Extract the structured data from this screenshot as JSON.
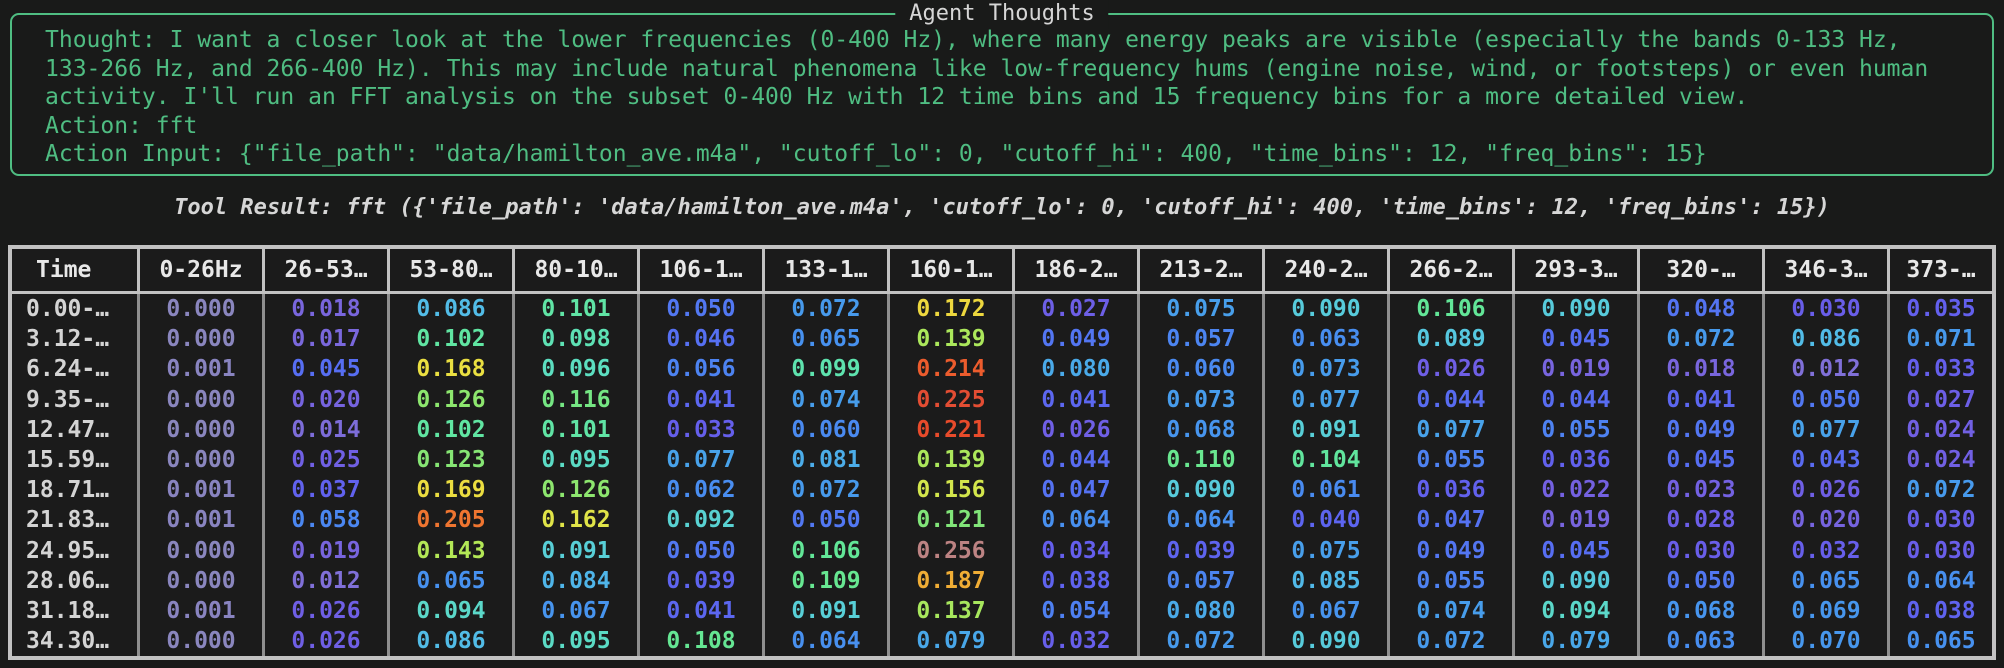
{
  "colors": {
    "bg": "#191a19",
    "green": "#4fbd82",
    "fg": "#d8d8d8",
    "frame": "#c2c2c2",
    "cellbg": "#1b1b1b",
    "gridline": "#8f8f8f",
    "header_text": "#e8e8e8",
    "time_text": "#d4d4d4"
  },
  "agent_thoughts": {
    "title": "Agent Thoughts",
    "lines": [
      "Thought: I want a closer look at the lower frequencies (0-400 Hz), where many energy peaks are visible (especially the bands 0-133 Hz,",
      "133-266 Hz, and 266-400 Hz). This may include natural phenomena like low-frequency hums (engine noise, wind, or footsteps) or even human",
      "activity. I'll run an FFT analysis on the subset 0-400 Hz with 12 time bins and 15 frequency bins for a more detailed view.",
      "Action: fft",
      "Action Input: {\"file_path\": \"data/hamilton_ave.m4a\", \"cutoff_lo\": 0, \"cutoff_hi\": 400, \"time_bins\": 12, \"freq_bins\": 15}"
    ]
  },
  "tool_result": "Tool Result: fft ({'file_path': 'data/hamilton_ave.m4a', 'cutoff_lo': 0, 'cutoff_hi': 400, 'time_bins': 12, 'freq_bins': 15})",
  "table": {
    "headers": [
      "Time",
      "0-26Hz",
      "26-53…",
      "53-80…",
      "80-10…",
      "106-1…",
      "133-1…",
      "160-1…",
      "186-2…",
      "213-2…",
      "240-2…",
      "266-2…",
      "293-3…",
      "320-…",
      "346-3…",
      "373-…"
    ],
    "rows": [
      {
        "time": "0.00-…",
        "values": [
          "0.000",
          "0.018",
          "0.086",
          "0.101",
          "0.050",
          "0.072",
          "0.172",
          "0.027",
          "0.075",
          "0.090",
          "0.106",
          "0.090",
          "0.048",
          "0.030",
          "0.035"
        ]
      },
      {
        "time": "3.12-…",
        "values": [
          "0.000",
          "0.017",
          "0.102",
          "0.098",
          "0.046",
          "0.065",
          "0.139",
          "0.049",
          "0.057",
          "0.063",
          "0.089",
          "0.045",
          "0.072",
          "0.086",
          "0.071"
        ]
      },
      {
        "time": "6.24-…",
        "values": [
          "0.001",
          "0.045",
          "0.168",
          "0.096",
          "0.056",
          "0.099",
          "0.214",
          "0.080",
          "0.060",
          "0.073",
          "0.026",
          "0.019",
          "0.018",
          "0.012",
          "0.033"
        ]
      },
      {
        "time": "9.35-…",
        "values": [
          "0.000",
          "0.020",
          "0.126",
          "0.116",
          "0.041",
          "0.074",
          "0.225",
          "0.041",
          "0.073",
          "0.077",
          "0.044",
          "0.044",
          "0.041",
          "0.050",
          "0.027"
        ]
      },
      {
        "time": "12.47…",
        "values": [
          "0.000",
          "0.014",
          "0.102",
          "0.101",
          "0.033",
          "0.060",
          "0.221",
          "0.026",
          "0.068",
          "0.091",
          "0.077",
          "0.055",
          "0.049",
          "0.077",
          "0.024"
        ]
      },
      {
        "time": "15.59…",
        "values": [
          "0.000",
          "0.025",
          "0.123",
          "0.095",
          "0.077",
          "0.081",
          "0.139",
          "0.044",
          "0.110",
          "0.104",
          "0.055",
          "0.036",
          "0.045",
          "0.043",
          "0.024"
        ]
      },
      {
        "time": "18.71…",
        "values": [
          "0.001",
          "0.037",
          "0.169",
          "0.126",
          "0.062",
          "0.072",
          "0.156",
          "0.047",
          "0.090",
          "0.061",
          "0.036",
          "0.022",
          "0.023",
          "0.026",
          "0.072"
        ]
      },
      {
        "time": "21.83…",
        "values": [
          "0.001",
          "0.058",
          "0.205",
          "0.162",
          "0.092",
          "0.050",
          "0.121",
          "0.064",
          "0.064",
          "0.040",
          "0.047",
          "0.019",
          "0.028",
          "0.020",
          "0.030"
        ]
      },
      {
        "time": "24.95…",
        "values": [
          "0.000",
          "0.019",
          "0.143",
          "0.091",
          "0.050",
          "0.106",
          "0.256",
          "0.034",
          "0.039",
          "0.075",
          "0.049",
          "0.045",
          "0.030",
          "0.032",
          "0.030"
        ]
      },
      {
        "time": "28.06…",
        "values": [
          "0.000",
          "0.012",
          "0.065",
          "0.084",
          "0.039",
          "0.109",
          "0.187",
          "0.038",
          "0.057",
          "0.085",
          "0.055",
          "0.090",
          "0.050",
          "0.065",
          "0.064"
        ]
      },
      {
        "time": "31.18…",
        "values": [
          "0.001",
          "0.026",
          "0.094",
          "0.067",
          "0.041",
          "0.091",
          "0.137",
          "0.054",
          "0.080",
          "0.067",
          "0.074",
          "0.094",
          "0.068",
          "0.069",
          "0.038"
        ]
      },
      {
        "time": "34.30…",
        "values": [
          "0.000",
          "0.026",
          "0.086",
          "0.095",
          "0.108",
          "0.064",
          "0.079",
          "0.032",
          "0.072",
          "0.090",
          "0.072",
          "0.079",
          "0.063",
          "0.070",
          "0.065"
        ]
      }
    ]
  },
  "colormap": {
    "anchors": [
      [
        0.0,
        "#8a86be"
      ],
      [
        0.01,
        "#8274d6"
      ],
      [
        0.016,
        "#7b69db"
      ],
      [
        0.022,
        "#7461e1"
      ],
      [
        0.028,
        "#6c5ee7"
      ],
      [
        0.034,
        "#645fec"
      ],
      [
        0.04,
        "#5d65f0"
      ],
      [
        0.046,
        "#5670f2"
      ],
      [
        0.052,
        "#507cf2"
      ],
      [
        0.058,
        "#4b87f1"
      ],
      [
        0.065,
        "#4791ef"
      ],
      [
        0.072,
        "#479aec"
      ],
      [
        0.078,
        "#48a4e9"
      ],
      [
        0.084,
        "#4fb5e9"
      ],
      [
        0.088,
        "#55c4e4"
      ],
      [
        0.092,
        "#59d2d2"
      ],
      [
        0.096,
        "#5cdec0"
      ],
      [
        0.1,
        "#5fe4a8"
      ],
      [
        0.106,
        "#62e697"
      ],
      [
        0.112,
        "#6ce78b"
      ],
      [
        0.12,
        "#7ee57b"
      ],
      [
        0.128,
        "#92e669"
      ],
      [
        0.136,
        "#a5e75e"
      ],
      [
        0.144,
        "#b5e755"
      ],
      [
        0.152,
        "#c9e64e"
      ],
      [
        0.16,
        "#dce54a"
      ],
      [
        0.168,
        "#eadf41"
      ],
      [
        0.175,
        "#efd13c"
      ],
      [
        0.182,
        "#f0bb37"
      ],
      [
        0.19,
        "#f0a434"
      ],
      [
        0.198,
        "#f08a32"
      ],
      [
        0.206,
        "#ef7230"
      ],
      [
        0.214,
        "#ec5c2d"
      ],
      [
        0.222,
        "#e7482b"
      ],
      [
        0.256,
        "#bd8383"
      ]
    ]
  }
}
